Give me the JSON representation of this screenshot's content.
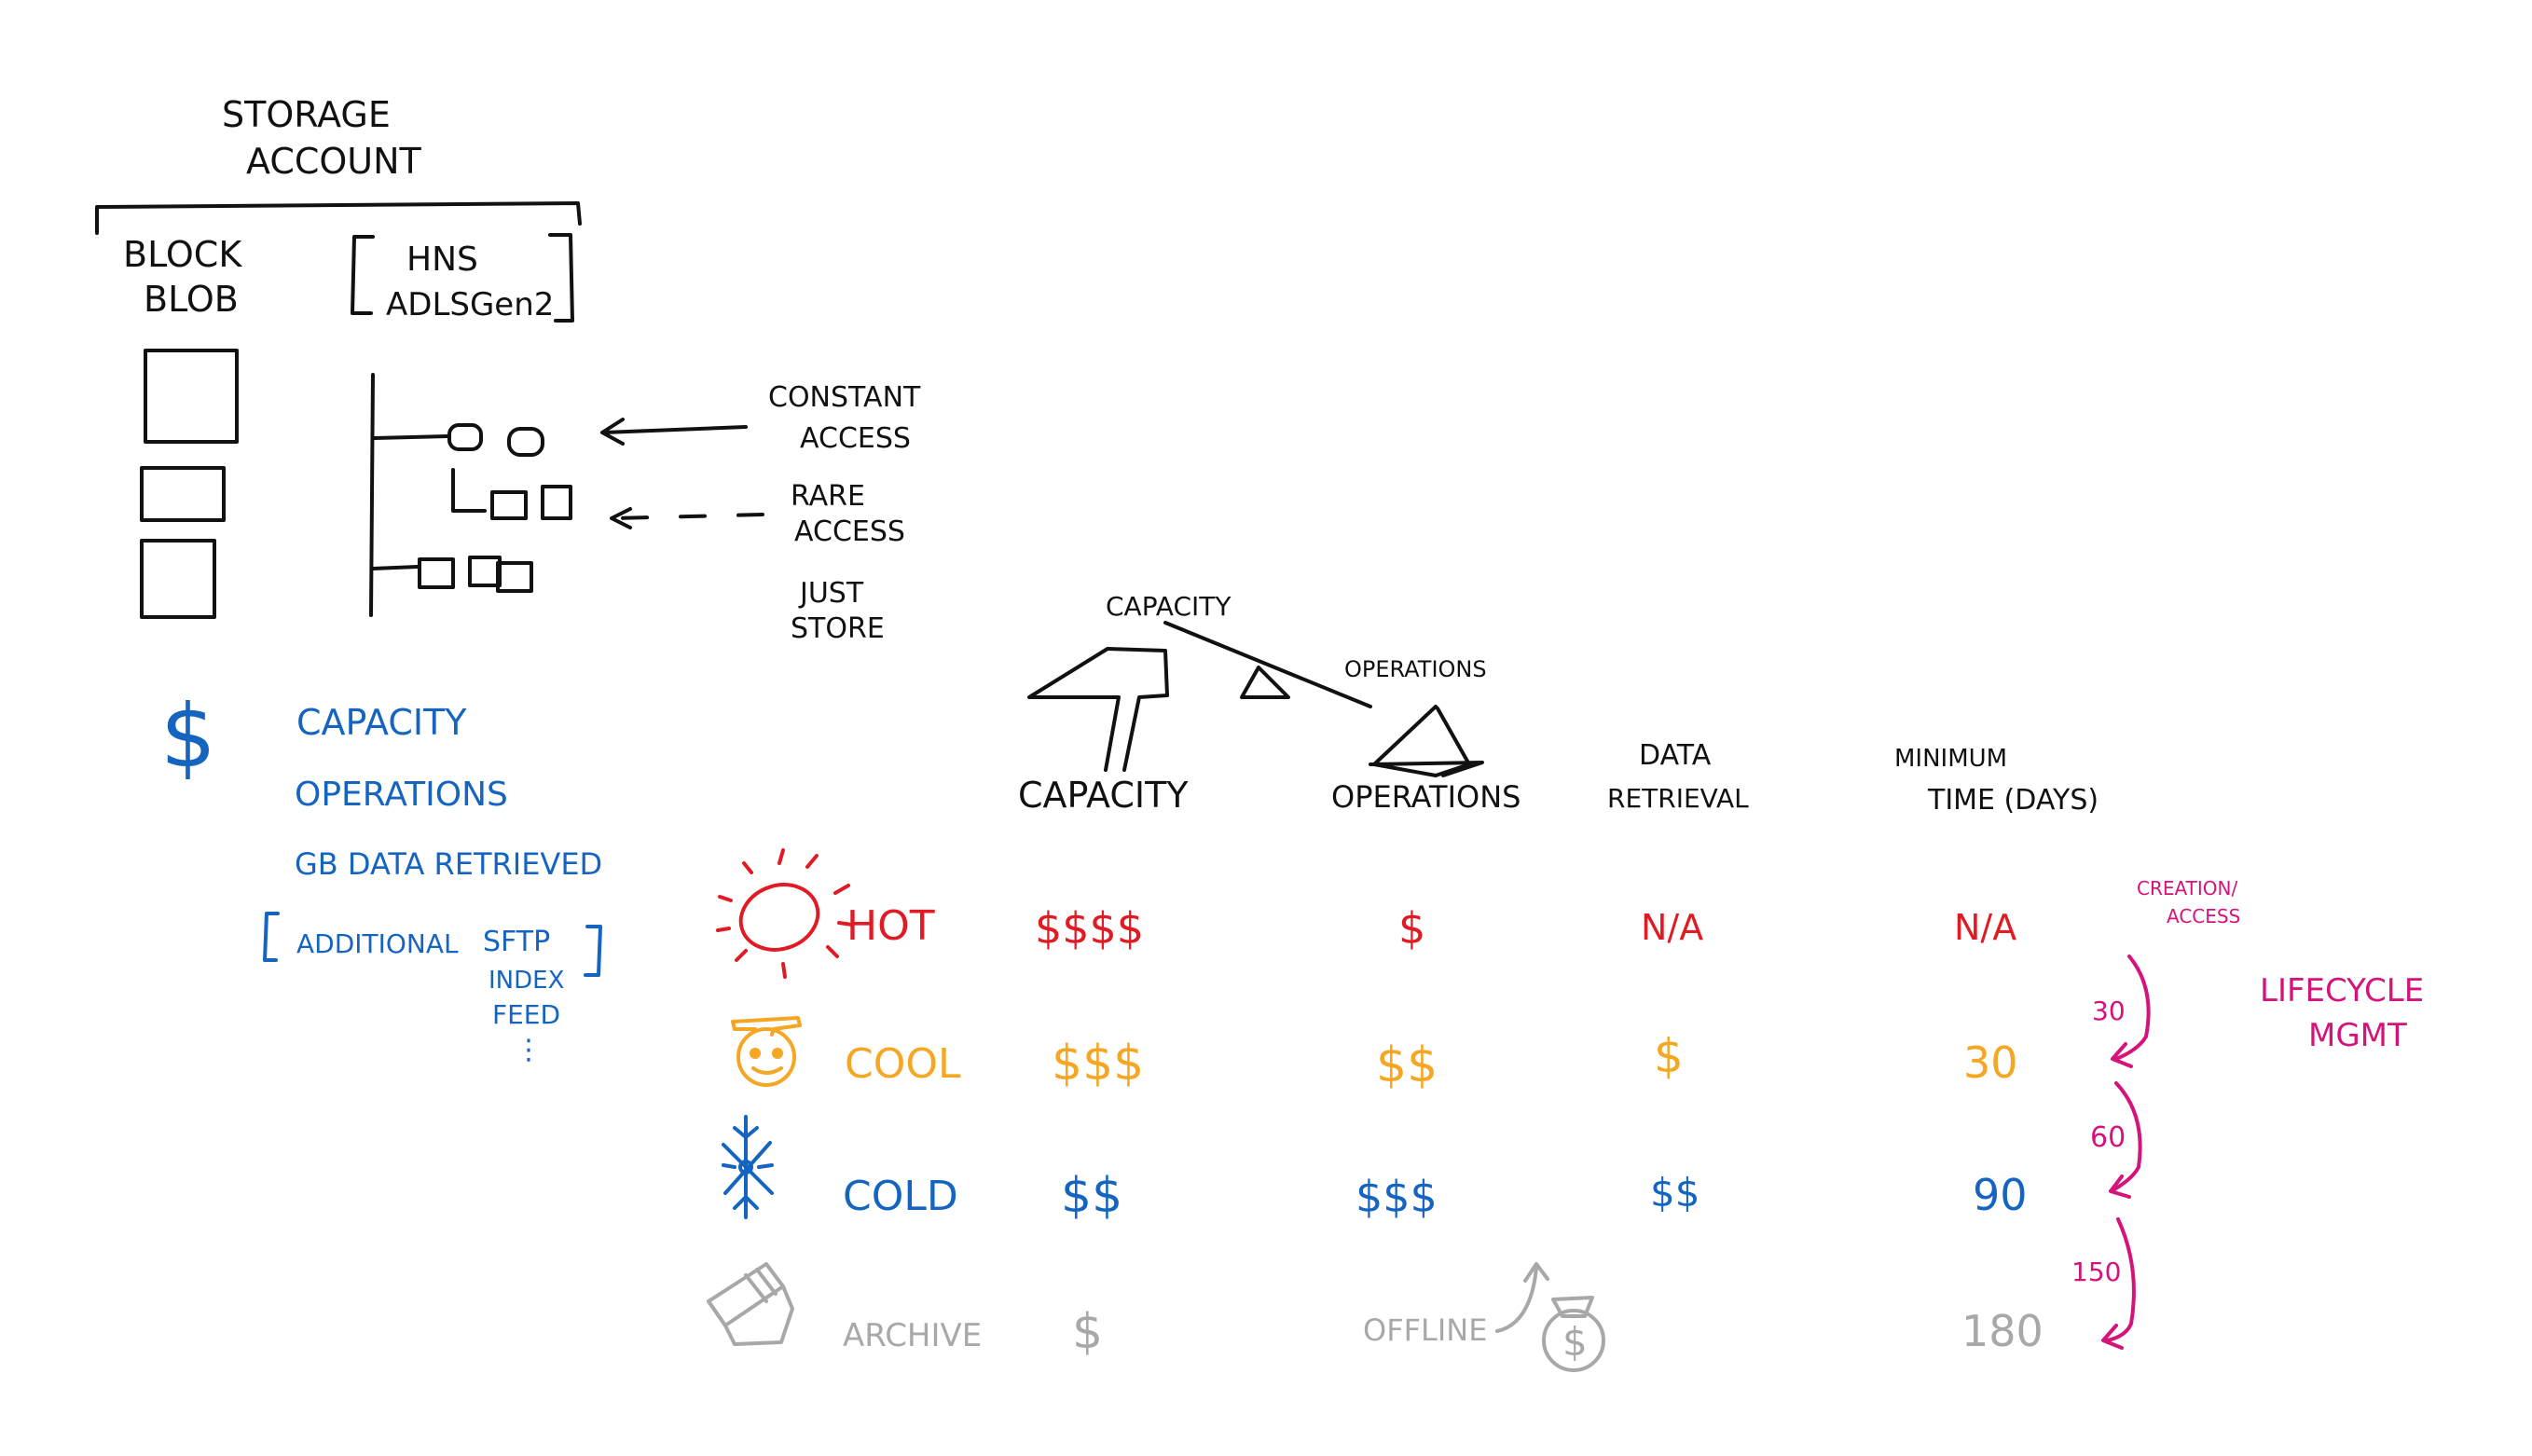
{
  "storage": {
    "title_line1": "STORAGE",
    "title_line2": "ACCOUNT",
    "block_blob_line1": "BLOCK",
    "block_blob_line2": "BLOB",
    "hns_line1": "HNS",
    "hns_line2": "ADLSGen2"
  },
  "access": {
    "constant_line1": "CONSTANT",
    "constant_line2": "ACCESS",
    "rare_line1": "RARE",
    "rare_line2": "ACCESS",
    "just_line1": "JUST",
    "just_line2": "STORE"
  },
  "costs": {
    "dollar": "$",
    "capacity": "CAPACITY",
    "operations": "OPERATIONS",
    "gb": "GB DATA RETRIEVED",
    "additional": "ADDITIONAL",
    "sftp": "SFTP",
    "index": "INDEX",
    "feed": "FEED",
    "ellipsis": "⋮"
  },
  "balance": {
    "capacity_label": "CAPACITY",
    "operations_label": "OPERATIONS"
  },
  "headers": {
    "capacity": "CAPACITY",
    "operations": "OPERATIONS",
    "data_line1": "DATA",
    "data_line2": "RETRIEVAL",
    "min_line1": "MINIMUM",
    "min_line2": "TIME (DAYS)"
  },
  "tiers": [
    {
      "name": "HOT",
      "capacity": "$$$$",
      "operations": "$",
      "retrieval": "N/A",
      "min": "N/A",
      "color": "#e01b24",
      "icon": "sun-icon"
    },
    {
      "name": "COOL",
      "capacity": "$$$",
      "operations": "$$",
      "retrieval": "$",
      "min": "30",
      "color": "#f5a623",
      "icon": "snowman-icon"
    },
    {
      "name": "COLD",
      "capacity": "$$",
      "operations": "$$$",
      "retrieval": "$$",
      "min": "90",
      "color": "#1565c0",
      "icon": "snowflake-icon"
    },
    {
      "name": "ARCHIVE",
      "capacity": "$",
      "operations": "OFFLINE",
      "retrieval": "",
      "min": "180",
      "color": "#a8a8a8",
      "icon": "archive-box-icon"
    }
  ],
  "archive_money_symbol": "$",
  "lifecycle": {
    "creation_line1": "CREATION/",
    "creation_line2": "ACCESS",
    "label_line1": "LIFECYCLE",
    "label_line2": "MGMT",
    "steps": [
      "30",
      "60",
      "150"
    ],
    "color": "#d4147a"
  }
}
